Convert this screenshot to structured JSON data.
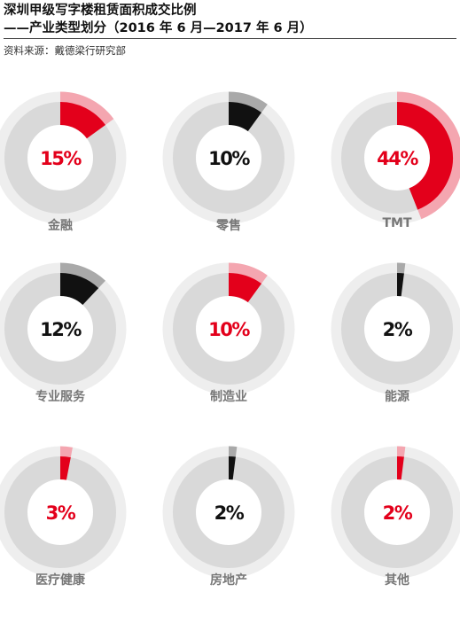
{
  "header": {
    "title_line1": "深圳甲级写字楼租赁面积成交比例",
    "title_line2": "——产业类型划分（2016 年 6 月—2017 年 6 月）",
    "source": "资料来源：戴德梁行研究部"
  },
  "colors": {
    "red": "#e3001b",
    "light_red": "#f4a6b0",
    "black": "#111111",
    "gray_arc": "#a9a9a9",
    "ring_outer": "#eeeeee",
    "ring_inner": "#d9d9d9",
    "label": "#777777"
  },
  "chart_data": {
    "type": "pie",
    "variant": "donut-grid",
    "categories": [
      "金融",
      "零售",
      "TMT",
      "专业服务",
      "制造业",
      "能源",
      "医疗健康",
      "房地产",
      "其他"
    ],
    "values": [
      15,
      10,
      44,
      12,
      10,
      2,
      3,
      2,
      2
    ],
    "unit": "%",
    "labels": [
      "15%",
      "10%",
      "44%",
      "12%",
      "10%",
      "2%",
      "3%",
      "2%",
      "2%"
    ],
    "highlight": [
      "red",
      "black",
      "red",
      "black",
      "red",
      "black",
      "red",
      "black",
      "red"
    ]
  }
}
